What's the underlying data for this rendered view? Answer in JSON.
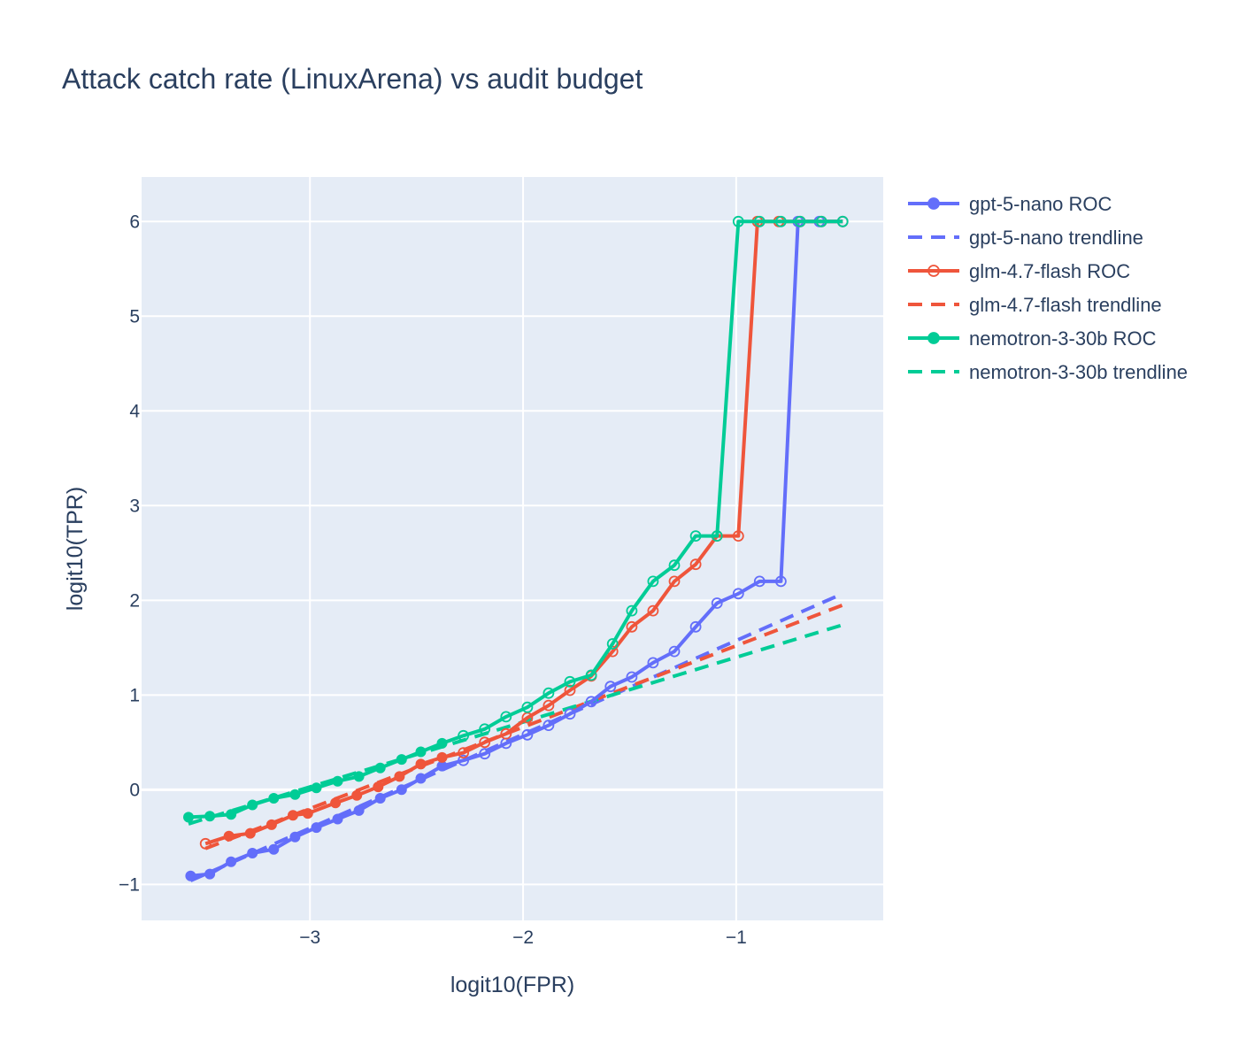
{
  "chart_data": {
    "type": "line",
    "title": "Attack catch rate (LinuxArena) vs audit budget",
    "xlabel": "logit10(FPR)",
    "ylabel": "logit10(TPR)",
    "xlim": [
      -3.79,
      -0.31
    ],
    "ylim": [
      -1.38,
      6.47
    ],
    "xticks": [
      -3,
      -2,
      -1
    ],
    "xtick_labels": [
      "−3",
      "−2",
      "−1"
    ],
    "yticks": [
      -1,
      0,
      1,
      2,
      3,
      4,
      5,
      6
    ],
    "ytick_labels": [
      "−1",
      "0",
      "1",
      "2",
      "3",
      "4",
      "5",
      "6"
    ],
    "grid": true,
    "legend_position": "top-right outside",
    "background": "#e5ecf6",
    "series": [
      {
        "name": "gpt-5-nano ROC",
        "kind": "roc",
        "color": "#636efa",
        "x": [
          -3.56,
          -3.47,
          -3.37,
          -3.27,
          -3.17,
          -3.07,
          -2.97,
          -2.87,
          -2.77,
          -2.67,
          -2.57,
          -2.48,
          -2.38,
          -2.28,
          -2.18,
          -2.08,
          -1.98,
          -1.88,
          -1.78,
          -1.68,
          -1.59,
          -1.49,
          -1.39,
          -1.29,
          -1.19,
          -1.09,
          -0.99,
          -0.89,
          -0.79,
          -0.71,
          -0.61,
          -0.5
        ],
        "y": [
          -0.91,
          -0.89,
          -0.76,
          -0.67,
          -0.63,
          -0.5,
          -0.4,
          -0.31,
          -0.22,
          -0.09,
          0.0,
          0.12,
          0.25,
          0.31,
          0.38,
          0.49,
          0.58,
          0.68,
          0.8,
          0.93,
          1.09,
          1.19,
          1.34,
          1.46,
          1.72,
          1.97,
          2.07,
          2.2,
          2.2,
          6.0,
          6.0,
          6.0
        ],
        "filled": [
          true,
          true,
          true,
          true,
          true,
          true,
          true,
          true,
          true,
          true,
          true,
          true,
          true,
          false,
          false,
          false,
          false,
          false,
          false,
          false,
          false,
          false,
          false,
          false,
          false,
          false,
          false,
          false,
          false,
          false,
          false,
          false
        ]
      },
      {
        "name": "gpt-5-nano trendline",
        "kind": "trend",
        "color": "#636efa",
        "x": [
          -3.56,
          -0.5
        ],
        "y": [
          -0.96,
          2.07
        ]
      },
      {
        "name": "glm-4.7-flash ROC",
        "kind": "roc",
        "color": "#ef553b",
        "x": [
          -3.49,
          -3.38,
          -3.28,
          -3.18,
          -3.08,
          -3.01,
          -2.88,
          -2.78,
          -2.68,
          -2.58,
          -2.48,
          -2.38,
          -2.28,
          -2.18,
          -2.08,
          -1.98,
          -1.88,
          -1.78,
          -1.68,
          -1.58,
          -1.49,
          -1.39,
          -1.29,
          -1.19,
          -1.09,
          -0.99,
          -0.9,
          -0.8,
          -0.7,
          -0.6,
          -0.5
        ],
        "y": [
          -0.57,
          -0.49,
          -0.46,
          -0.37,
          -0.27,
          -0.25,
          -0.14,
          -0.06,
          0.03,
          0.14,
          0.27,
          0.34,
          0.39,
          0.5,
          0.59,
          0.76,
          0.89,
          1.05,
          1.2,
          1.46,
          1.72,
          1.89,
          2.2,
          2.38,
          2.68,
          2.68,
          6.0,
          6.0,
          6.0,
          6.0,
          6.0
        ],
        "filled": [
          false,
          true,
          true,
          true,
          true,
          true,
          true,
          true,
          true,
          true,
          true,
          true,
          false,
          false,
          false,
          false,
          false,
          false,
          false,
          false,
          false,
          false,
          false,
          false,
          false,
          false,
          false,
          false,
          false,
          false,
          false
        ]
      },
      {
        "name": "glm-4.7-flash trendline",
        "kind": "trend",
        "color": "#ef553b",
        "x": [
          -3.49,
          -0.5
        ],
        "y": [
          -0.62,
          1.95
        ]
      },
      {
        "name": "nemotron-3-30b ROC",
        "kind": "roc",
        "color": "#00cc96",
        "x": [
          -3.57,
          -3.47,
          -3.37,
          -3.27,
          -3.17,
          -3.07,
          -2.97,
          -2.87,
          -2.77,
          -2.67,
          -2.57,
          -2.48,
          -2.38,
          -2.28,
          -2.18,
          -2.08,
          -1.98,
          -1.88,
          -1.78,
          -1.68,
          -1.58,
          -1.49,
          -1.39,
          -1.29,
          -1.19,
          -1.09,
          -0.99,
          -0.89,
          -0.79,
          -0.7,
          -0.6,
          -0.5
        ],
        "y": [
          -0.29,
          -0.28,
          -0.26,
          -0.16,
          -0.09,
          -0.05,
          0.02,
          0.09,
          0.14,
          0.23,
          0.32,
          0.4,
          0.49,
          0.57,
          0.64,
          0.77,
          0.87,
          1.02,
          1.14,
          1.21,
          1.54,
          1.89,
          2.2,
          2.37,
          2.68,
          2.68,
          6.0,
          6.0,
          6.0,
          6.0,
          6.0,
          6.0
        ],
        "filled": [
          true,
          true,
          true,
          true,
          true,
          true,
          true,
          true,
          true,
          true,
          true,
          true,
          true,
          false,
          false,
          false,
          false,
          false,
          false,
          false,
          false,
          false,
          false,
          false,
          false,
          false,
          false,
          false,
          false,
          false,
          false,
          false
        ]
      },
      {
        "name": "nemotron-3-30b trendline",
        "kind": "trend",
        "color": "#00cc96",
        "x": [
          -3.57,
          -0.5
        ],
        "y": [
          -0.36,
          1.74
        ]
      }
    ]
  }
}
